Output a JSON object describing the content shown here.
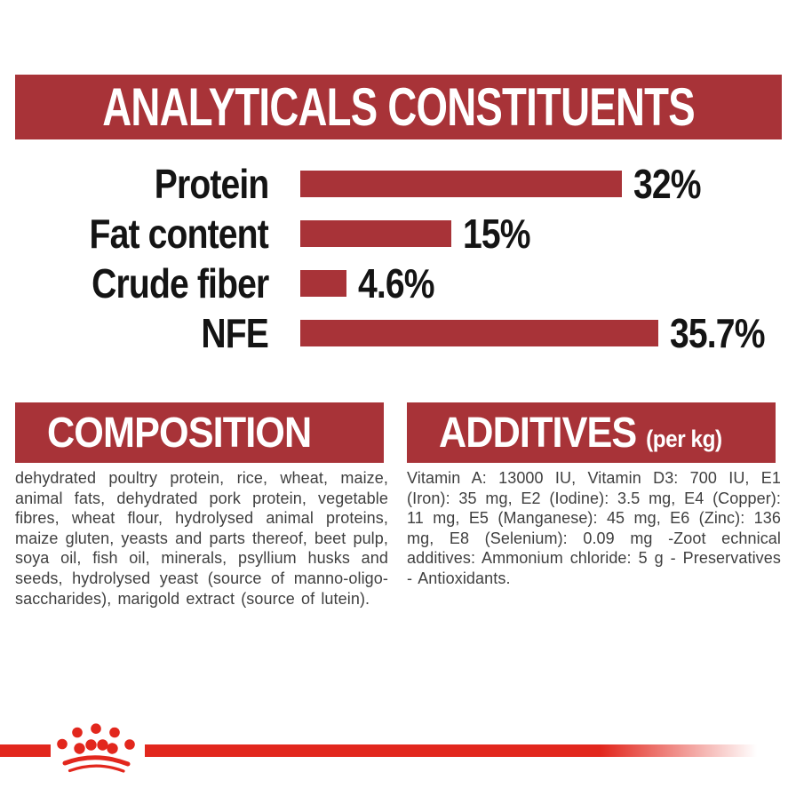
{
  "analyticals": {
    "title": "ANALYTICALS CONSTITUENTS"
  },
  "chart_data": {
    "type": "bar",
    "orientation": "horizontal",
    "title": "ANALYTICALS CONSTITUENTS",
    "categories": [
      "Protein",
      "Fat content",
      "Crude fiber",
      "NFE"
    ],
    "values": [
      32,
      15,
      4.6,
      35.7
    ],
    "value_labels": [
      "32%",
      "15%",
      "4.6%",
      "35.7%"
    ],
    "unit": "%",
    "xlim": [
      0,
      40
    ],
    "grid": false,
    "legend": false,
    "bar_color": "#a83338"
  },
  "composition": {
    "header": "COMPOSITION",
    "body": "dehydrated poultry protein, rice, wheat, maize, animal fats, dehydrated pork protein, vegetable fibres, wheat flour, hydrolysed animal proteins, maize gluten, yeasts and parts thereof, beet pulp, soya oil, fish oil, minerals, psyllium husks and seeds, hydrolysed yeast (source of manno-oligo-saccharides), marigold extract (source of lutein)."
  },
  "additives": {
    "header": "ADDITIVES",
    "header_suffix": "(per kg)",
    "body": "Vitamin A: 13000 IU, Vitamin D3: 700 IU, E1 (Iron): 35 mg, E2 (Iodine): 3.5 mg, E4 (Copper): 11 mg, E5 (Manganese): 45 mg, E6 (Zinc): 136 mg, E8 (Selenium): 0.09 mg -Zoot echnical additives: Ammonium chloride: 5 g - Preservatives - Antioxidants."
  },
  "footer": {
    "logo": "royal-canin-crown"
  },
  "colors": {
    "banner_red": "#a83338",
    "bar_red": "#a83338",
    "brand_red": "#e2271d",
    "text_dark": "#3f3f3f",
    "label_black": "#141414"
  }
}
